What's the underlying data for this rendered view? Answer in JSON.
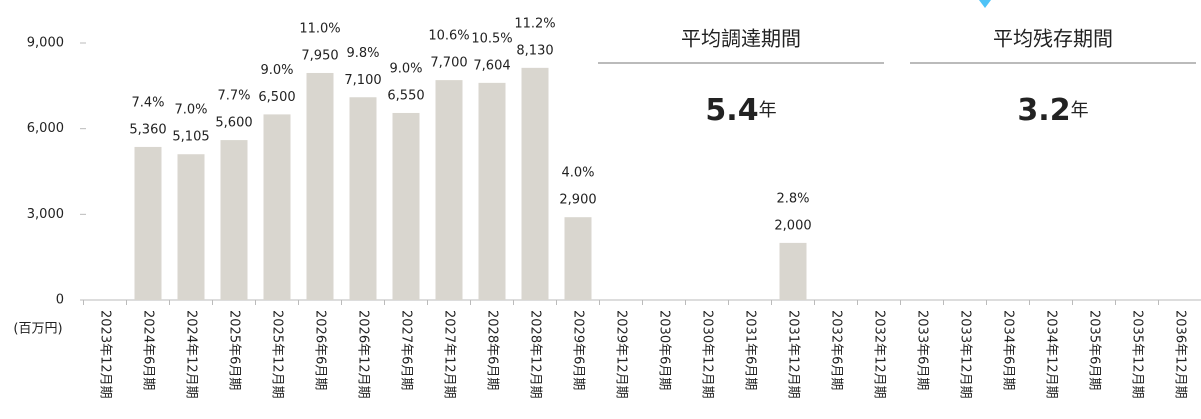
{
  "chart_data": {
    "type": "bar",
    "y_label": "(百万円)",
    "categories": [
      "2023年12月期",
      "2024年6月期",
      "2024年12月期",
      "2025年6月期",
      "2025年12月期",
      "2026年6月期",
      "2026年12月期",
      "2027年6月期",
      "2027年12月期",
      "2028年6月期",
      "2028年12月期",
      "2029年6月期",
      "2029年12月期",
      "2030年6月期",
      "2030年12月期",
      "2031年6月期",
      "2031年12月期",
      "2032年6月期",
      "2032年12月期",
      "2033年6月期",
      "2033年12月期",
      "2034年6月期",
      "2034年12月期",
      "2035年6月期",
      "2035年12月期",
      "2036年12月期"
    ],
    "values": [
      null,
      5360,
      5105,
      5600,
      6500,
      7950,
      7100,
      6550,
      7700,
      7604,
      8130,
      2900,
      null,
      null,
      null,
      null,
      2000,
      null,
      null,
      null,
      null,
      null,
      null,
      null,
      null,
      null
    ],
    "value_labels": [
      null,
      "5,360",
      "5,105",
      "5,600",
      "6,500",
      "7,950",
      "7,100",
      "6,550",
      "7,700",
      "7,604",
      "8,130",
      "2,900",
      null,
      null,
      null,
      null,
      "2,000",
      null,
      null,
      null,
      null,
      null,
      null,
      null,
      null,
      null
    ],
    "shares": [
      null,
      7.4,
      7.0,
      7.7,
      9.0,
      11.0,
      9.8,
      9.0,
      10.6,
      10.5,
      11.2,
      4.0,
      null,
      null,
      null,
      null,
      2.8,
      null,
      null,
      null,
      null,
      null,
      null,
      null,
      null,
      null
    ],
    "share_labels": [
      null,
      "7.4%",
      "7.0%",
      "7.7%",
      "9.0%",
      "11.0%",
      "9.8%",
      "9.0%",
      "10.6%",
      "10.5%",
      "11.2%",
      "4.0%",
      null,
      null,
      null,
      null,
      "2.8%",
      null,
      null,
      null,
      null,
      null,
      null,
      null,
      null,
      null
    ],
    "color": "#d9d6cf",
    "ylim": [
      0,
      9000
    ],
    "yticks": [
      0,
      {
        "value": 3000,
        "label": "3,000"
      },
      {
        "value": 6000,
        "label": "6,000"
      },
      {
        "value": 9000,
        "label": "9,000"
      }
    ],
    "summary": [
      {
        "label": "平均調達期間",
        "value": 5.4,
        "unit": "年"
      },
      {
        "label": "平均残存期間",
        "value": 3.2,
        "unit": "年"
      }
    ]
  }
}
